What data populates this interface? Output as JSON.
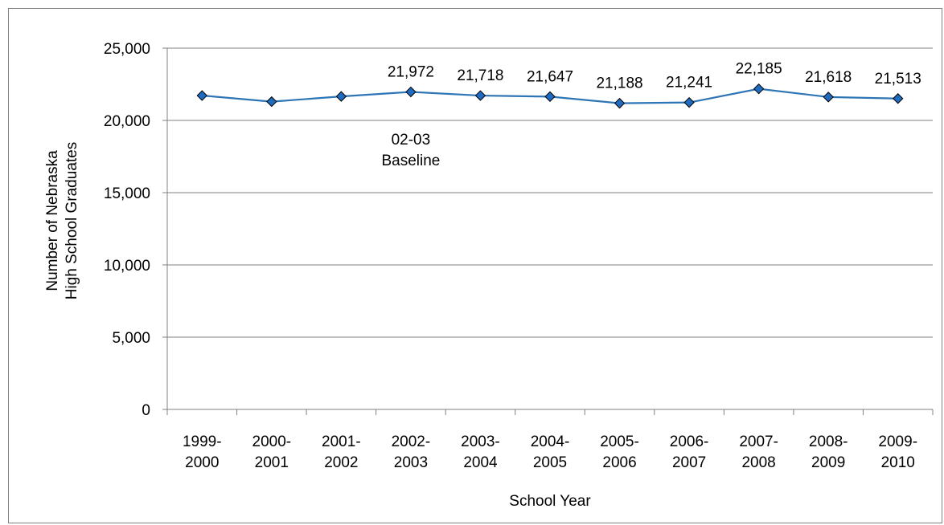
{
  "chart_data": {
    "type": "line",
    "title": "",
    "xlabel": "School Year",
    "ylabel_lines": [
      "Number of Nebraska",
      "High School Graduates"
    ],
    "ylim": [
      0,
      25000
    ],
    "yticks": [
      0,
      5000,
      10000,
      15000,
      20000,
      25000
    ],
    "ytick_labels": [
      "0",
      "5,000",
      "10,000",
      "15,000",
      "20,000",
      "25,000"
    ],
    "grid": true,
    "categories": [
      [
        "1999-",
        "2000"
      ],
      [
        "2000-",
        "2001"
      ],
      [
        "2001-",
        "2002"
      ],
      [
        "2002-",
        "2003"
      ],
      [
        "2003-",
        "2004"
      ],
      [
        "2004-",
        "2005"
      ],
      [
        "2005-",
        "2006"
      ],
      [
        "2006-",
        "2007"
      ],
      [
        "2007-",
        "2008"
      ],
      [
        "2008-",
        "2009"
      ],
      [
        "2009-",
        "2010"
      ]
    ],
    "series": [
      {
        "values": [
          21720,
          21300,
          21660,
          21972,
          21718,
          21647,
          21188,
          21241,
          22185,
          21618,
          21513
        ],
        "data_labels": [
          "",
          "",
          "",
          "21,972",
          "21,718",
          "21,647",
          "21,188",
          "21,241",
          "22,185",
          "21,618",
          "21,513"
        ],
        "color": "#2e75b6",
        "marker_fill": "#1f6bbf",
        "marker_stroke": "#000000"
      }
    ],
    "annotations": [
      {
        "category_index": 3,
        "lines": [
          "02-03",
          "Baseline"
        ]
      }
    ]
  }
}
